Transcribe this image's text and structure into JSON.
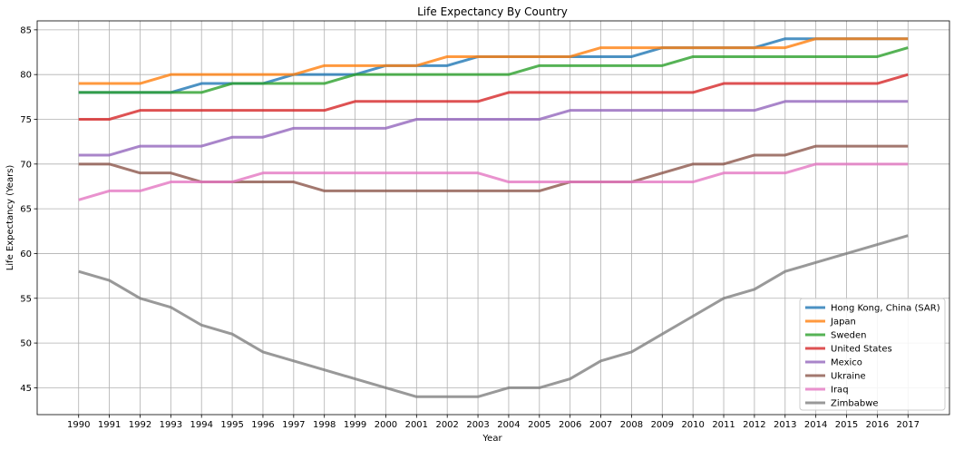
{
  "chart_data": {
    "type": "line",
    "title": "Life Expectancy By Country",
    "xlabel": "Year",
    "ylabel": "Life Expectancy (Years)",
    "x": [
      1990,
      1991,
      1992,
      1993,
      1994,
      1995,
      1996,
      1997,
      1998,
      1999,
      2000,
      2001,
      2002,
      2003,
      2004,
      2005,
      2006,
      2007,
      2008,
      2009,
      2010,
      2011,
      2012,
      2013,
      2014,
      2015,
      2016,
      2017
    ],
    "xlim": [
      1988.65,
      2018.35
    ],
    "ylim": [
      42,
      86
    ],
    "yticks": [
      45,
      50,
      55,
      60,
      65,
      70,
      75,
      80,
      85
    ],
    "grid": true,
    "legend_position": "bottom-right",
    "series": [
      {
        "name": "Hong Kong, China (SAR)",
        "color": "#1f77b4",
        "values": [
          78,
          78,
          78,
          78,
          79,
          79,
          79,
          80,
          80,
          80,
          81,
          81,
          81,
          82,
          82,
          82,
          82,
          82,
          82,
          83,
          83,
          83,
          83,
          84,
          84,
          84,
          84,
          84
        ]
      },
      {
        "name": "Japan",
        "color": "#ff7f0e",
        "values": [
          79,
          79,
          79,
          80,
          80,
          80,
          80,
          80,
          81,
          81,
          81,
          81,
          82,
          82,
          82,
          82,
          82,
          83,
          83,
          83,
          83,
          83,
          83,
          83,
          84,
          84,
          84,
          84
        ]
      },
      {
        "name": "Sweden",
        "color": "#2ca02c",
        "values": [
          78,
          78,
          78,
          78,
          78,
          79,
          79,
          79,
          79,
          80,
          80,
          80,
          80,
          80,
          80,
          81,
          81,
          81,
          81,
          81,
          82,
          82,
          82,
          82,
          82,
          82,
          82,
          83
        ]
      },
      {
        "name": "United States",
        "color": "#d62728",
        "values": [
          75,
          75,
          76,
          76,
          76,
          76,
          76,
          76,
          76,
          77,
          77,
          77,
          77,
          77,
          78,
          78,
          78,
          78,
          78,
          78,
          78,
          79,
          79,
          79,
          79,
          79,
          79,
          80
        ]
      },
      {
        "name": "Mexico",
        "color": "#9467bd",
        "values": [
          71,
          71,
          72,
          72,
          72,
          73,
          73,
          74,
          74,
          74,
          74,
          75,
          75,
          75,
          75,
          75,
          76,
          76,
          76,
          76,
          76,
          76,
          76,
          77,
          77,
          77,
          77,
          77
        ]
      },
      {
        "name": "Ukraine",
        "color": "#8c564b",
        "values": [
          70,
          70,
          69,
          69,
          68,
          68,
          68,
          68,
          67,
          67,
          67,
          67,
          67,
          67,
          67,
          67,
          68,
          68,
          68,
          69,
          70,
          70,
          71,
          71,
          72,
          72,
          72,
          72
        ]
      },
      {
        "name": "Iraq",
        "color": "#e377c2",
        "values": [
          66,
          67,
          67,
          68,
          68,
          68,
          69,
          69,
          69,
          69,
          69,
          69,
          69,
          69,
          68,
          68,
          68,
          68,
          68,
          68,
          68,
          69,
          69,
          69,
          70,
          70,
          70,
          70
        ]
      },
      {
        "name": "Zimbabwe",
        "color": "#7f7f7f",
        "values": [
          58,
          57,
          55,
          54,
          52,
          51,
          49,
          48,
          47,
          46,
          45,
          44,
          44,
          44,
          45,
          45,
          46,
          48,
          49,
          51,
          53,
          55,
          56,
          58,
          59,
          60,
          61,
          62
        ]
      }
    ]
  }
}
